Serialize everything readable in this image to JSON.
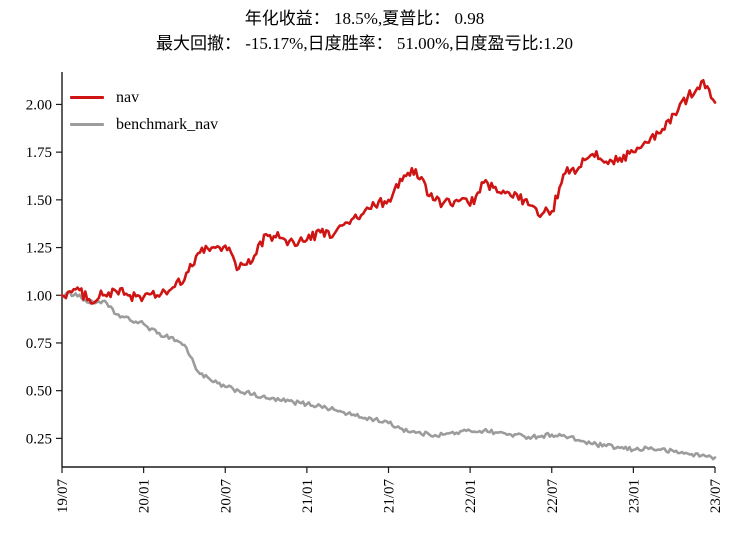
{
  "title": {
    "line1": "年化收益： 18.5%,夏普比： 0.98",
    "line2": "最大回撤： -15.17%,日度胜率： 51.00%,日度盈亏比:1.20"
  },
  "legend": [
    {
      "label": "nav",
      "color": "#cf1414"
    },
    {
      "label": "benchmark_nav",
      "color": "#9c9c9c"
    }
  ],
  "chart_data": {
    "type": "line",
    "title": "年化收益： 18.5%,夏普比： 0.98 / 最大回撤： -15.17%,日度胜率： 51.00%,日度盈亏比:1.20",
    "xlabel": "",
    "ylabel": "",
    "x_unit": "months since 2019-07",
    "x_tick_labels": [
      "19/07",
      "20/01",
      "20/07",
      "21/01",
      "21/07",
      "22/01",
      "22/07",
      "23/01",
      "23/07"
    ],
    "x_tick_positions": [
      0,
      6,
      12,
      18,
      24,
      30,
      36,
      42,
      48
    ],
    "y_ticks": [
      0.25,
      0.5,
      0.75,
      1.0,
      1.25,
      1.5,
      1.75,
      2.0
    ],
    "xlim": [
      0,
      48
    ],
    "ylim": [
      0.1,
      2.17
    ],
    "grid": false,
    "legend_position": "upper-left",
    "x": [
      0,
      1,
      2,
      3,
      4,
      5,
      6,
      7,
      8,
      9,
      10,
      11,
      12,
      13,
      14,
      15,
      16,
      17,
      18,
      19,
      20,
      21,
      22,
      23,
      24,
      25,
      26,
      27,
      28,
      29,
      30,
      31,
      32,
      33,
      34,
      35,
      36,
      37,
      38,
      39,
      40,
      41,
      42,
      43,
      44,
      45,
      46,
      47,
      48
    ],
    "series": [
      {
        "name": "benchmark_nav",
        "color": "#9c9c9c",
        "noise": 0.012,
        "values": [
          1.0,
          1.01,
          0.96,
          0.97,
          0.9,
          0.87,
          0.85,
          0.8,
          0.78,
          0.74,
          0.6,
          0.55,
          0.52,
          0.5,
          0.48,
          0.46,
          0.45,
          0.44,
          0.43,
          0.42,
          0.4,
          0.38,
          0.36,
          0.35,
          0.33,
          0.3,
          0.28,
          0.27,
          0.27,
          0.28,
          0.29,
          0.29,
          0.28,
          0.27,
          0.26,
          0.26,
          0.27,
          0.26,
          0.24,
          0.22,
          0.21,
          0.2,
          0.19,
          0.2,
          0.19,
          0.18,
          0.17,
          0.16,
          0.15
        ]
      },
      {
        "name": "nav",
        "color": "#cf1414",
        "noise": 0.028,
        "values": [
          1.0,
          1.03,
          0.98,
          1.0,
          1.02,
          1.0,
          0.99,
          1.0,
          1.03,
          1.08,
          1.22,
          1.25,
          1.26,
          1.14,
          1.18,
          1.32,
          1.3,
          1.28,
          1.29,
          1.33,
          1.32,
          1.38,
          1.42,
          1.47,
          1.5,
          1.6,
          1.66,
          1.52,
          1.48,
          1.5,
          1.47,
          1.59,
          1.54,
          1.52,
          1.5,
          1.42,
          1.44,
          1.64,
          1.67,
          1.74,
          1.7,
          1.72,
          1.75,
          1.8,
          1.85,
          1.95,
          2.04,
          2.12,
          2.01
        ]
      }
    ]
  }
}
